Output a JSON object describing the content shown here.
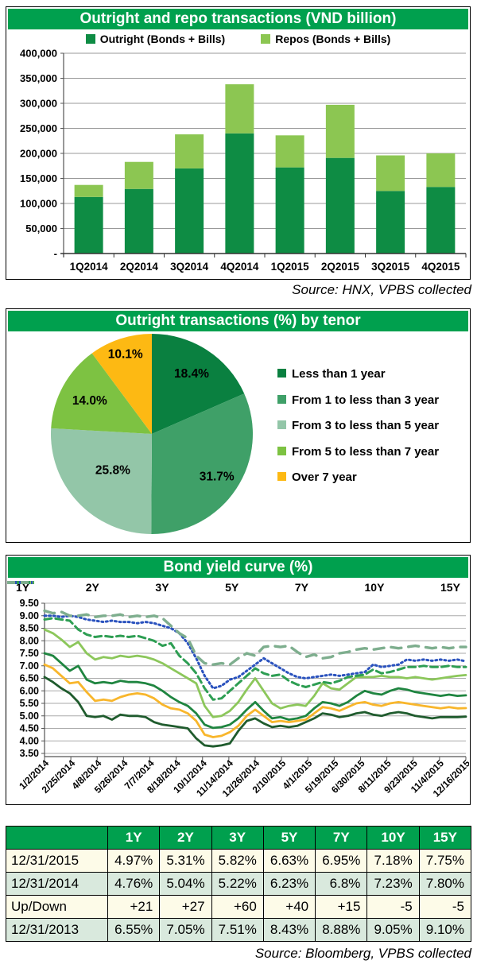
{
  "colors": {
    "header_green": "#00A04E",
    "grid": "#999999",
    "axis": "#555555",
    "axis_dark": "#333333",
    "table_row_cream": "#FDFBE8",
    "table_row_green": "#D9E9DD"
  },
  "chart_data": [
    {
      "type": "bar",
      "title": "Outright and repo transactions (VND billion)",
      "source": "Source: HNX, VPBS collected",
      "categories": [
        "1Q2014",
        "2Q2014",
        "3Q2014",
        "4Q2014",
        "1Q2015",
        "2Q2015",
        "3Q2015",
        "4Q2015"
      ],
      "series": [
        {
          "name": "Outright (Bonds + Bills)",
          "color": "#0E8C44",
          "values": [
            113000,
            129000,
            170000,
            240000,
            172000,
            191000,
            125000,
            133000
          ]
        },
        {
          "name": "Repos (Bonds + Bills)",
          "color": "#8CC652",
          "values": [
            24000,
            54000,
            68000,
            98000,
            64000,
            106000,
            71000,
            67000
          ]
        }
      ],
      "stacked": true,
      "y_ticks": [
        "400,000",
        "350,000",
        "300,000",
        "250,000",
        "200,000",
        "150,000",
        "100,000",
        "50,000",
        "-"
      ],
      "ylim": [
        0,
        400000
      ],
      "legend_position": "top"
    },
    {
      "type": "pie",
      "title": "Outright transactions (%) by tenor",
      "slices": [
        {
          "label": "Less than 1 year",
          "value": 18.4,
          "value_label": "18.4%",
          "color": "#0A8040"
        },
        {
          "label": "From 1 to less than 3 year",
          "value": 31.7,
          "value_label": "31.7%",
          "color": "#3FA068"
        },
        {
          "label": "From 3 to less than 5 year",
          "value": 25.8,
          "value_label": "25.8%",
          "color": "#93C6A8"
        },
        {
          "label": "From 5 to less than 7 year",
          "value": 14.0,
          "value_label": "14.0%",
          "color": "#7DC242"
        },
        {
          "label": "Over 7 year",
          "value": 10.1,
          "value_label": "10.1%",
          "color": "#FDB913"
        }
      ],
      "legend_position": "right"
    },
    {
      "type": "line",
      "title": "Bond yield curve (%)",
      "y_ticks": [
        "9.50",
        "9.00",
        "8.50",
        "8.00",
        "7.50",
        "7.00",
        "6.50",
        "6.00",
        "5.50",
        "5.00",
        "4.50",
        "4.00",
        "3.50"
      ],
      "ylim": [
        3.5,
        9.5
      ],
      "x_labels": [
        "1/2/2014",
        "2/25/2014",
        "4/8/2014",
        "5/26/2014",
        "7/7/2014",
        "8/18/2014",
        "10/1/2014",
        "11/14/2014",
        "12/26/2014",
        "2/10/2015",
        "4/1/2015",
        "5/19/2015",
        "6/30/2015",
        "8/11/2015",
        "9/23/2015",
        "11/4/2015",
        "12/16/2015"
      ],
      "legend_position": "top",
      "series": [
        {
          "name": "1Y",
          "color": "#1F5B2D",
          "dash": "",
          "width": 2.8,
          "values": [
            6.55,
            6.35,
            6.1,
            5.9,
            5.55,
            5.0,
            4.95,
            5.0,
            4.85,
            5.05,
            5.0,
            5.0,
            4.95,
            4.75,
            4.65,
            4.6,
            4.55,
            4.5,
            4.1,
            3.82,
            3.78,
            3.82,
            3.9,
            4.4,
            4.8,
            4.9,
            4.7,
            4.55,
            4.6,
            4.55,
            4.6,
            4.75,
            4.9,
            5.1,
            5.05,
            4.95,
            5.0,
            5.1,
            5.15,
            5.05,
            5.0,
            5.1,
            5.15,
            5.1,
            5.0,
            4.95,
            4.9,
            4.95,
            4.95,
            4.95,
            4.97
          ]
        },
        {
          "name": "2Y",
          "color": "#F8B62C",
          "dash": "",
          "width": 2.8,
          "values": [
            7.05,
            6.9,
            6.6,
            6.3,
            6.35,
            5.95,
            5.6,
            5.65,
            5.6,
            5.75,
            5.85,
            5.9,
            5.85,
            5.7,
            5.45,
            5.3,
            5.25,
            5.1,
            4.8,
            4.25,
            4.15,
            4.2,
            4.35,
            4.6,
            5.0,
            5.25,
            5.0,
            4.75,
            4.8,
            4.75,
            4.8,
            4.85,
            5.1,
            5.35,
            5.3,
            5.2,
            5.35,
            5.5,
            5.55,
            5.45,
            5.4,
            5.5,
            5.55,
            5.5,
            5.45,
            5.4,
            5.35,
            5.3,
            5.35,
            5.3,
            5.31
          ]
        },
        {
          "name": "3Y",
          "color": "#1F8540",
          "dash": "",
          "width": 2.8,
          "values": [
            7.5,
            7.4,
            7.1,
            6.8,
            7.0,
            6.45,
            6.3,
            6.35,
            6.3,
            6.4,
            6.35,
            6.35,
            6.3,
            6.2,
            6.0,
            5.75,
            5.55,
            5.4,
            5.1,
            4.65,
            4.52,
            4.55,
            4.65,
            4.9,
            5.25,
            5.55,
            5.2,
            4.9,
            4.95,
            4.85,
            4.9,
            5.0,
            5.3,
            5.55,
            5.5,
            5.4,
            5.55,
            5.8,
            6.0,
            5.9,
            5.85,
            6.0,
            6.1,
            6.05,
            5.95,
            5.9,
            5.85,
            5.8,
            5.85,
            5.8,
            5.82
          ]
        },
        {
          "name": "5Y",
          "color": "#8CC75B",
          "dash": "",
          "width": 2.8,
          "values": [
            8.45,
            8.3,
            8.05,
            7.75,
            7.95,
            7.5,
            7.25,
            7.35,
            7.3,
            7.4,
            7.35,
            7.4,
            7.35,
            7.25,
            7.1,
            6.9,
            6.7,
            6.5,
            6.3,
            5.4,
            4.95,
            5.0,
            5.2,
            5.55,
            6.05,
            6.5,
            6.0,
            5.5,
            5.3,
            5.4,
            5.45,
            5.4,
            5.8,
            6.3,
            6.1,
            6.05,
            6.3,
            6.55,
            6.55,
            6.55,
            6.6,
            6.55,
            6.55,
            6.5,
            6.55,
            6.5,
            6.45,
            6.5,
            6.55,
            6.6,
            6.63
          ]
        },
        {
          "name": "7Y",
          "color": "#2E9E53",
          "dash": "9 5",
          "width": 3,
          "values": [
            8.85,
            8.9,
            8.85,
            8.8,
            8.45,
            8.25,
            8.15,
            8.2,
            8.15,
            8.2,
            8.15,
            8.2,
            8.1,
            8.0,
            7.8,
            7.9,
            7.4,
            7.1,
            6.7,
            6.1,
            5.65,
            5.7,
            6.0,
            6.3,
            6.6,
            6.9,
            6.7,
            6.6,
            6.65,
            6.4,
            6.25,
            6.15,
            6.25,
            6.35,
            6.3,
            6.4,
            6.55,
            6.6,
            6.65,
            6.85,
            6.7,
            6.75,
            6.85,
            6.95,
            6.95,
            7.0,
            6.95,
            6.95,
            7.0,
            6.95,
            6.95
          ]
        },
        {
          "name": "10Y",
          "color": "#2A52BE",
          "dash": "2 3.6",
          "width": 3,
          "values": [
            9.0,
            9.0,
            8.95,
            9.0,
            8.95,
            8.85,
            8.8,
            8.75,
            8.8,
            8.75,
            8.75,
            8.7,
            8.75,
            8.7,
            8.6,
            8.5,
            8.3,
            7.9,
            7.3,
            6.6,
            6.1,
            6.2,
            6.45,
            6.55,
            6.8,
            7.05,
            7.3,
            7.1,
            6.9,
            6.7,
            6.55,
            6.5,
            6.55,
            6.6,
            6.65,
            6.6,
            6.65,
            6.7,
            6.75,
            7.05,
            6.95,
            7.0,
            7.05,
            7.25,
            7.2,
            7.25,
            7.2,
            7.25,
            7.2,
            7.25,
            7.18
          ]
        },
        {
          "name": "15Y",
          "color": "#7EAE8E",
          "dash": "13 9",
          "width": 3.4,
          "values": [
            9.2,
            9.1,
            9.15,
            9.0,
            9.0,
            9.05,
            8.95,
            9.0,
            9.0,
            9.05,
            8.95,
            9.0,
            8.95,
            9.0,
            8.9,
            8.6,
            8.3,
            8.1,
            7.4,
            7.1,
            7.05,
            7.1,
            7.05,
            7.3,
            7.5,
            7.4,
            7.75,
            7.8,
            7.75,
            7.8,
            7.55,
            7.35,
            7.45,
            7.3,
            7.35,
            7.5,
            7.55,
            7.65,
            7.7,
            7.65,
            7.7,
            7.75,
            7.7,
            7.75,
            7.8,
            7.75,
            7.7,
            7.75,
            7.7,
            7.75,
            7.75
          ]
        }
      ]
    },
    {
      "type": "table",
      "headers": [
        "",
        "1Y",
        "2Y",
        "3Y",
        "5Y",
        "7Y",
        "10Y",
        "15Y"
      ],
      "rows": [
        [
          "12/31/2015",
          "4.97%",
          "5.31%",
          "5.82%",
          "6.63%",
          "6.95%",
          "7.18%",
          "7.75%"
        ],
        [
          "12/31/2014",
          "4.76%",
          "5.04%",
          "5.22%",
          "6.23%",
          "6.8%",
          "7.23%",
          "7.80%"
        ],
        [
          "Up/Down",
          "+21",
          "+27",
          "+60",
          "+40",
          "+15",
          "-5",
          "-5"
        ],
        [
          "12/31/2013",
          "6.55%",
          "7.05%",
          "7.51%",
          "8.43%",
          "8.88%",
          "9.05%",
          "9.10%"
        ]
      ],
      "source": "Source: Bloomberg, VPBS collected"
    }
  ]
}
